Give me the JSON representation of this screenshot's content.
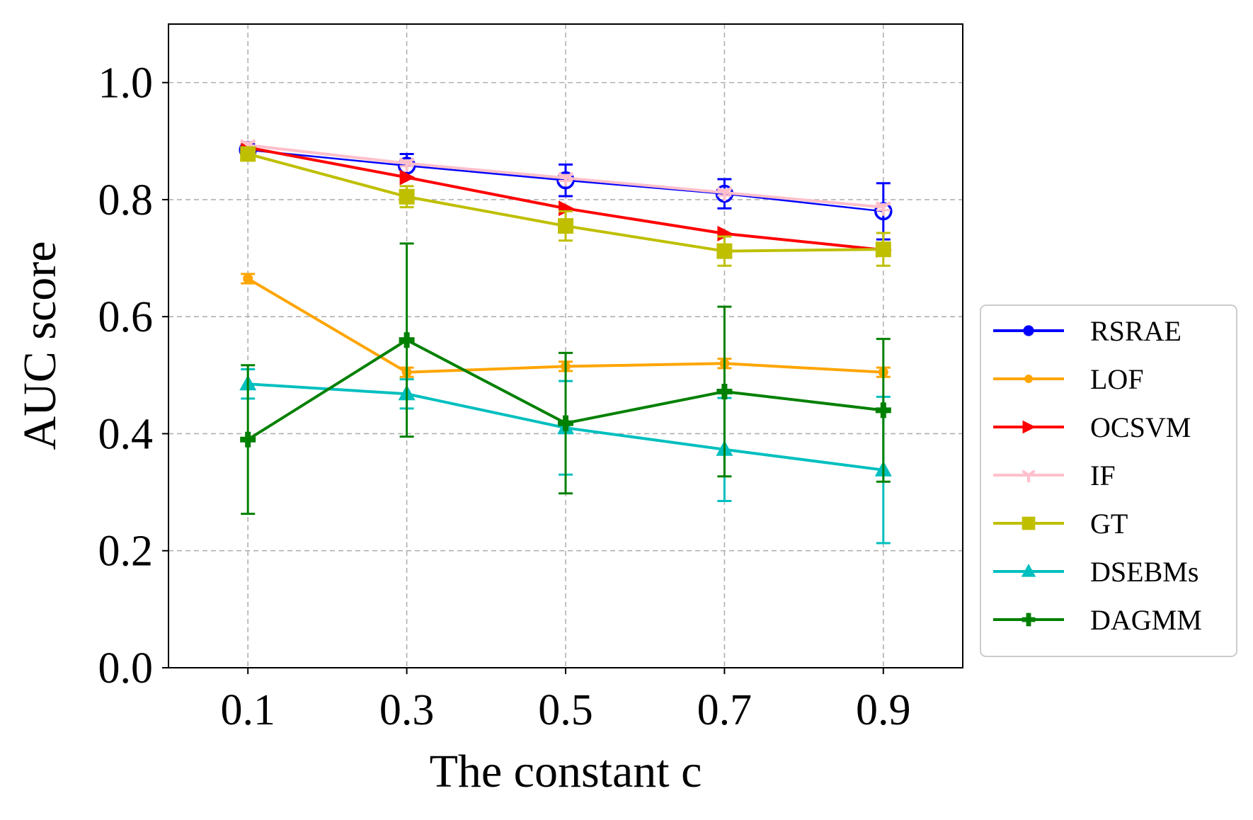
{
  "chart_data": {
    "type": "line",
    "title": "",
    "xlabel": "The constant c",
    "ylabel": "AUC score",
    "x": [
      0.1,
      0.3,
      0.5,
      0.7,
      0.9
    ],
    "x_tick_labels": [
      "0.1",
      "0.3",
      "0.5",
      "0.7",
      "0.9"
    ],
    "ylim": [
      0.0,
      1.1
    ],
    "y_ticks": [
      0.0,
      0.2,
      0.4,
      0.6,
      0.8,
      1.0
    ],
    "y_tick_labels": [
      "0.0",
      "0.2",
      "0.4",
      "0.6",
      "0.8",
      "1.0"
    ],
    "grid": true,
    "legend_position": "outside right",
    "series": [
      {
        "name": "RSRAE",
        "color": "#0000ff",
        "marker": "circle-open",
        "values": [
          0.885,
          0.858,
          0.833,
          0.81,
          0.78
        ],
        "errors": [
          0.01,
          0.02,
          0.027,
          0.025,
          0.048
        ]
      },
      {
        "name": "LOF",
        "color": "#ffa500",
        "marker": "small-circle",
        "values": [
          0.665,
          0.505,
          0.515,
          0.52,
          0.505
        ],
        "errors": [
          0.008,
          0.008,
          0.008,
          0.008,
          0.008
        ]
      },
      {
        "name": "OCSVM",
        "color": "#ff0000",
        "marker": "triangle-right",
        "values": [
          0.889,
          0.838,
          0.785,
          0.742,
          0.714
        ],
        "errors": [
          0,
          0,
          0,
          0,
          0
        ]
      },
      {
        "name": "IF",
        "color": "#ffc0cb",
        "marker": "tri-down",
        "values": [
          0.893,
          0.862,
          0.837,
          0.812,
          0.787
        ],
        "errors": [
          0.005,
          0.005,
          0.005,
          0.005,
          0.005
        ]
      },
      {
        "name": "GT",
        "color": "#bfbf00",
        "marker": "square",
        "values": [
          0.878,
          0.805,
          0.755,
          0.712,
          0.715
        ],
        "errors": [
          0.01,
          0.018,
          0.025,
          0.025,
          0.028
        ]
      },
      {
        "name": "DSEBMs",
        "color": "#00bfbf",
        "marker": "triangle-up",
        "values": [
          0.485,
          0.468,
          0.41,
          0.373,
          0.338
        ],
        "errors": [
          0.025,
          0.025,
          0.08,
          0.088,
          0.125
        ]
      },
      {
        "name": "DAGMM",
        "color": "#008000",
        "marker": "plus",
        "values": [
          0.39,
          0.56,
          0.418,
          0.472,
          0.44
        ],
        "errors": [
          0.127,
          0.165,
          0.12,
          0.145,
          0.122
        ]
      }
    ]
  }
}
